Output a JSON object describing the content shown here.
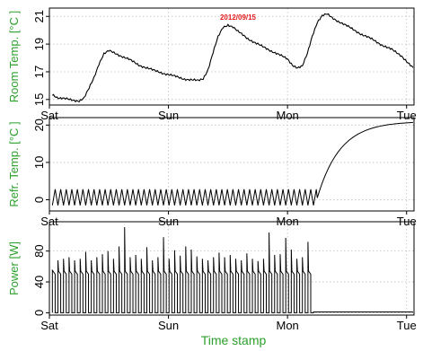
{
  "colors": {
    "label": "#2ca02c",
    "title": "#e41a1c",
    "line": "#000000",
    "grid": "#bfbfbf",
    "frame": "#000000"
  },
  "xlabel": "Time stamp",
  "chart_data": [
    {
      "type": "line",
      "panel": "room",
      "title": "2012/09/15",
      "ylabel": "Room Temp. [°C ]",
      "xlim": [
        0,
        73.5
      ],
      "ylim": [
        14.6,
        21.6
      ],
      "x_ticks": [
        {
          "x": 0,
          "label": "Sat"
        },
        {
          "x": 24,
          "label": "Sun"
        },
        {
          "x": 48,
          "label": "Mon"
        },
        {
          "x": 72,
          "label": "Tue"
        }
      ],
      "y_ticks": [
        {
          "y": 15,
          "label": "15"
        },
        {
          "y": 17,
          "label": "17"
        },
        {
          "y": 19,
          "label": "19"
        },
        {
          "y": 21,
          "label": "21"
        }
      ],
      "grid": true,
      "series": [
        {
          "x": [
            0.6,
            2,
            4,
            6,
            7,
            8,
            9,
            10,
            11,
            12,
            12.5,
            13.5,
            16,
            18,
            21,
            24,
            27,
            30,
            31,
            32,
            33,
            34,
            35,
            36,
            37,
            38,
            40,
            43,
            46,
            48,
            49,
            50,
            51,
            52,
            53,
            54,
            55,
            56,
            57,
            59,
            61,
            63,
            65,
            67,
            69,
            71,
            73.3
          ],
          "y": [
            15.3,
            15.1,
            15.0,
            14.9,
            15.1,
            15.8,
            16.6,
            17.6,
            18.3,
            18.5,
            18.45,
            18.3,
            17.9,
            17.5,
            17.1,
            16.8,
            16.5,
            16.35,
            16.5,
            17.2,
            18.4,
            19.5,
            20.2,
            20.4,
            20.25,
            19.9,
            19.4,
            18.8,
            18.3,
            17.9,
            17.5,
            17.3,
            17.4,
            18.3,
            19.6,
            20.6,
            21.05,
            21.15,
            20.9,
            20.5,
            20.1,
            19.7,
            19.35,
            18.95,
            18.6,
            18.15,
            17.3
          ]
        }
      ]
    },
    {
      "type": "line",
      "panel": "refr",
      "ylabel": "Refr. Temp. [°C ]",
      "xlim": [
        0,
        73.5
      ],
      "ylim": [
        -3,
        22
      ],
      "x_ticks": [
        {
          "x": 0,
          "label": "Sat"
        },
        {
          "x": 24,
          "label": "Sun"
        },
        {
          "x": 48,
          "label": "Mon"
        },
        {
          "x": 72,
          "label": "Tue"
        }
      ],
      "y_ticks": [
        {
          "y": 0,
          "label": "0"
        },
        {
          "y": 10,
          "label": "10"
        },
        {
          "y": 20,
          "label": "20"
        }
      ],
      "grid": true,
      "cycle": {
        "start": 0.6,
        "end": 54.0,
        "period": 1.12,
        "min": -1.5,
        "max": 2.8
      },
      "recovery": {
        "start": 54.0,
        "end": 73.3,
        "from": 0.5,
        "to": 20.7
      }
    },
    {
      "type": "line",
      "panel": "power",
      "ylabel": "Power [W]",
      "xlim": [
        0,
        73.5
      ],
      "ylim": [
        -3,
        118
      ],
      "x_ticks": [
        {
          "x": 0,
          "label": "Sat"
        },
        {
          "x": 24,
          "label": "Sun"
        },
        {
          "x": 48,
          "label": "Mon"
        },
        {
          "x": 72,
          "label": "Tue"
        }
      ],
      "y_ticks": [
        {
          "y": 0,
          "label": "0"
        },
        {
          "y": 40,
          "label": "40"
        },
        {
          "y": 80,
          "label": "80"
        }
      ],
      "grid": true,
      "pulses": {
        "start": 0.6,
        "end": 54.0,
        "period": 1.12,
        "on_fraction": 0.5,
        "on_level": 50,
        "base": 0
      },
      "peaks": [
        55,
        68,
        70,
        72,
        68,
        70,
        79,
        68,
        72,
        76,
        80,
        70,
        86,
        111,
        72,
        75,
        70,
        85,
        68,
        72,
        98,
        70,
        81,
        74,
        86,
        82,
        73,
        70,
        68,
        72,
        78,
        72,
        75,
        70,
        68,
        77,
        70,
        67,
        70,
        104,
        75,
        76,
        97,
        82,
        70,
        72,
        92,
        71,
        94,
        75
      ],
      "off_level": 1
    }
  ]
}
